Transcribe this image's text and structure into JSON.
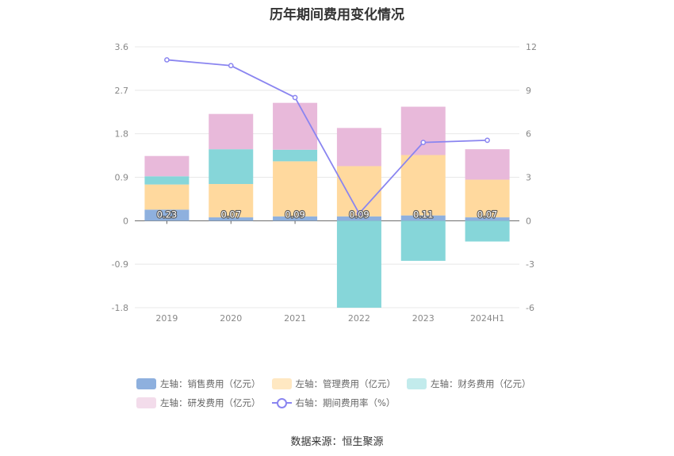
{
  "chart_data": {
    "type": "bar",
    "stacked": true,
    "title": "历年期间费用变化情况",
    "categories": [
      "2019",
      "2020",
      "2021",
      "2022",
      "2023",
      "2024H1"
    ],
    "y_left": {
      "min": -1.8,
      "max": 3.6,
      "ticks": [
        "3.6",
        "2.7",
        "1.8",
        "0.9",
        "0",
        "-0.9",
        "-1.8"
      ],
      "tick_values": [
        3.6,
        2.7,
        1.8,
        0.9,
        0,
        -0.9,
        -1.8
      ]
    },
    "y_right": {
      "min": -6,
      "max": 12,
      "ticks": [
        "12",
        "9",
        "6",
        "3",
        "0",
        "-3",
        "-6"
      ],
      "tick_values": [
        12,
        9,
        6,
        3,
        0,
        -3,
        -6
      ]
    },
    "series": [
      {
        "name": "左轴：销售费用（亿元）",
        "axis": "left",
        "color": "#8EB0DE",
        "values": [
          0.23,
          0.07,
          0.09,
          0.09,
          0.11,
          0.07
        ],
        "labels": [
          "0.23",
          "0.07",
          "0.09",
          "0.09",
          "0.11",
          "0.07"
        ]
      },
      {
        "name": "左轴：管理费用（亿元）",
        "axis": "left",
        "color": "#FFD99E",
        "values": [
          0.52,
          0.69,
          1.14,
          1.04,
          1.25,
          0.78
        ]
      },
      {
        "name": "左轴：财务费用（亿元）",
        "axis": "left",
        "color": "#86D6D9",
        "values": [
          0.17,
          0.72,
          0.24,
          -1.8,
          -0.83,
          -0.43
        ]
      },
      {
        "name": "左轴：研发费用（亿元）",
        "axis": "left",
        "color": "#E8B9DA",
        "values": [
          0.42,
          0.73,
          0.97,
          0.79,
          1.0,
          0.63
        ]
      }
    ],
    "line": {
      "name": "右轴：期间费用率（%）",
      "axis": "right",
      "color": "#8A85F0",
      "values": [
        11.1,
        10.7,
        8.5,
        0.5,
        5.4,
        5.55
      ]
    },
    "source": "数据来源：恒生聚源"
  }
}
